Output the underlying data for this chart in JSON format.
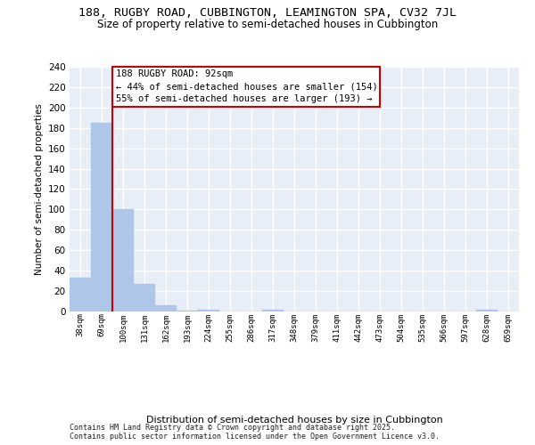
{
  "title1": "188, RUGBY ROAD, CUBBINGTON, LEAMINGTON SPA, CV32 7JL",
  "title2": "Size of property relative to semi-detached houses in Cubbington",
  "xlabel": "Distribution of semi-detached houses by size in Cubbington",
  "ylabel": "Number of semi-detached properties",
  "categories": [
    "38sqm",
    "69sqm",
    "100sqm",
    "131sqm",
    "162sqm",
    "193sqm",
    "224sqm",
    "255sqm",
    "286sqm",
    "317sqm",
    "348sqm",
    "379sqm",
    "411sqm",
    "442sqm",
    "473sqm",
    "504sqm",
    "535sqm",
    "566sqm",
    "597sqm",
    "628sqm",
    "659sqm"
  ],
  "values": [
    33,
    185,
    100,
    27,
    6,
    1,
    2,
    0,
    0,
    2,
    0,
    0,
    0,
    0,
    0,
    0,
    0,
    0,
    0,
    2,
    0
  ],
  "bar_color": "#aec6e8",
  "bar_edge_color": "#aec6e8",
  "vline_color": "#cc0000",
  "vline_pos": 1.5,
  "annotation_text": "188 RUGBY ROAD: 92sqm\n← 44% of semi-detached houses are smaller (154)\n55% of semi-detached houses are larger (193) →",
  "annotation_box_edge": "#cc0000",
  "annotation_fontsize": 7.5,
  "title_fontsize": 9.5,
  "subtitle_fontsize": 8.5,
  "background_color": "#e8eef8",
  "grid_color": "#ffffff",
  "footer": "Contains HM Land Registry data © Crown copyright and database right 2025.\nContains public sector information licensed under the Open Government Licence v3.0.",
  "ylim": [
    0,
    240
  ],
  "yticks": [
    0,
    20,
    40,
    60,
    80,
    100,
    120,
    140,
    160,
    180,
    200,
    220,
    240
  ]
}
